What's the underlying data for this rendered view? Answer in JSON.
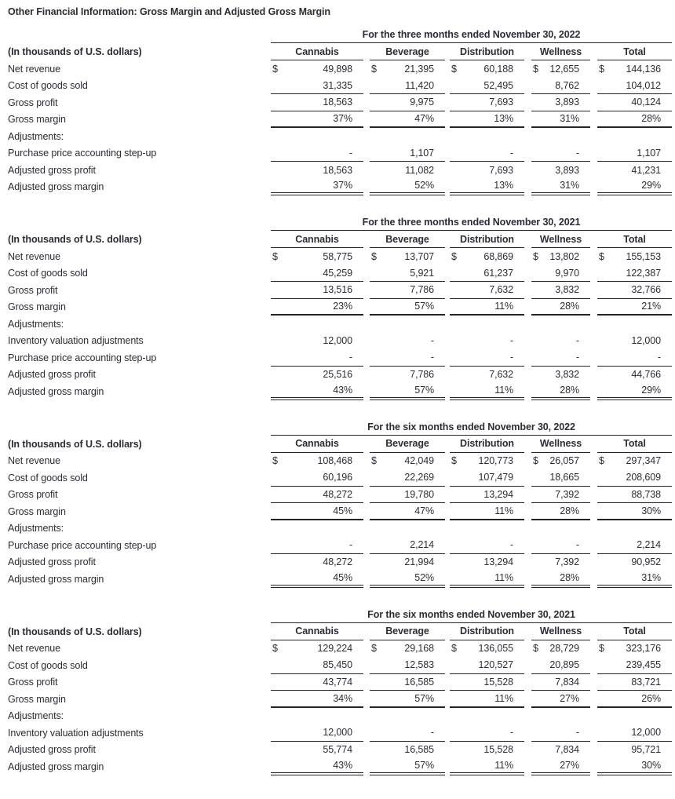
{
  "page_title": "Other Financial Information: Gross Margin and Adjusted Gross Margin",
  "unit_label": "(In thousands of U.S. dollars)",
  "currency_symbol": "$",
  "columns": [
    "Cannabis",
    "Beverage",
    "Distribution",
    "Wellness",
    "Total"
  ],
  "colors": {
    "text": "#2c2c35",
    "rule": "#23232a",
    "background": "#ffffff"
  },
  "tables": [
    {
      "period": "For the three months ended November 30, 2022",
      "rows": [
        {
          "label": "Net revenue",
          "dollar": true,
          "rule": "none",
          "values": [
            "49,898",
            "21,395",
            "60,188",
            "12,655",
            "144,136"
          ]
        },
        {
          "label": "Cost of goods sold",
          "dollar": false,
          "rule": "single",
          "values": [
            "31,335",
            "11,420",
            "52,495",
            "8,762",
            "104,012"
          ]
        },
        {
          "label": "Gross profit",
          "dollar": false,
          "rule": "single",
          "values": [
            "18,563",
            "9,975",
            "7,693",
            "3,893",
            "40,124"
          ]
        },
        {
          "label": "Gross margin",
          "dollar": false,
          "rule": "thick",
          "values": [
            "37%",
            "47%",
            "13%",
            "31%",
            "28%"
          ]
        },
        {
          "label": "Adjustments:",
          "dollar": false,
          "rule": "none",
          "values": [
            "",
            "",
            "",
            "",
            ""
          ]
        },
        {
          "label": "Purchase price accounting step-up",
          "dollar": false,
          "rule": "single",
          "values": [
            "-",
            "1,107",
            "-",
            "-",
            "1,107"
          ]
        },
        {
          "label": "Adjusted gross profit",
          "dollar": false,
          "rule": "none",
          "values": [
            "18,563",
            "11,082",
            "7,693",
            "3,893",
            "41,231"
          ]
        },
        {
          "label": "Adjusted gross margin",
          "dollar": false,
          "rule": "double",
          "values": [
            "37%",
            "52%",
            "13%",
            "31%",
            "29%"
          ]
        }
      ]
    },
    {
      "period": "For the three months ended November 30, 2021",
      "rows": [
        {
          "label": "Net revenue",
          "dollar": true,
          "rule": "none",
          "values": [
            "58,775",
            "13,707",
            "68,869",
            "13,802",
            "155,153"
          ]
        },
        {
          "label": "Cost of goods sold",
          "dollar": false,
          "rule": "single",
          "values": [
            "45,259",
            "5,921",
            "61,237",
            "9,970",
            "122,387"
          ]
        },
        {
          "label": "Gross profit",
          "dollar": false,
          "rule": "single",
          "values": [
            "13,516",
            "7,786",
            "7,632",
            "3,832",
            "32,766"
          ]
        },
        {
          "label": "Gross margin",
          "dollar": false,
          "rule": "thick",
          "values": [
            "23%",
            "57%",
            "11%",
            "28%",
            "21%"
          ]
        },
        {
          "label": "Adjustments:",
          "dollar": false,
          "rule": "none",
          "values": [
            "",
            "",
            "",
            "",
            ""
          ]
        },
        {
          "label": "Inventory valuation adjustments",
          "dollar": false,
          "rule": "none",
          "values": [
            "12,000",
            "-",
            "-",
            "-",
            "12,000"
          ]
        },
        {
          "label": "Purchase price accounting step-up",
          "dollar": false,
          "rule": "single",
          "values": [
            "-",
            "-",
            "-",
            "-",
            "-"
          ]
        },
        {
          "label": "Adjusted gross profit",
          "dollar": false,
          "rule": "none",
          "values": [
            "25,516",
            "7,786",
            "7,632",
            "3,832",
            "44,766"
          ]
        },
        {
          "label": "Adjusted gross margin",
          "dollar": false,
          "rule": "double",
          "values": [
            "43%",
            "57%",
            "11%",
            "28%",
            "29%"
          ]
        }
      ]
    },
    {
      "period": "For the six months ended November 30, 2022",
      "rows": [
        {
          "label": "Net revenue",
          "dollar": true,
          "rule": "none",
          "values": [
            "108,468",
            "42,049",
            "120,773",
            "26,057",
            "297,347"
          ]
        },
        {
          "label": "Cost of goods sold",
          "dollar": false,
          "rule": "single",
          "values": [
            "60,196",
            "22,269",
            "107,479",
            "18,665",
            "208,609"
          ]
        },
        {
          "label": "Gross profit",
          "dollar": false,
          "rule": "single",
          "values": [
            "48,272",
            "19,780",
            "13,294",
            "7,392",
            "88,738"
          ]
        },
        {
          "label": "Gross margin",
          "dollar": false,
          "rule": "thick",
          "values": [
            "45%",
            "47%",
            "11%",
            "28%",
            "30%"
          ]
        },
        {
          "label": "Adjustments:",
          "dollar": false,
          "rule": "none",
          "values": [
            "",
            "",
            "",
            "",
            ""
          ]
        },
        {
          "label": "Purchase price accounting step-up",
          "dollar": false,
          "rule": "single",
          "values": [
            "-",
            "2,214",
            "-",
            "-",
            "2,214"
          ]
        },
        {
          "label": "Adjusted gross profit",
          "dollar": false,
          "rule": "none",
          "values": [
            "48,272",
            "21,994",
            "13,294",
            "7,392",
            "90,952"
          ]
        },
        {
          "label": "Adjusted gross margin",
          "dollar": false,
          "rule": "double",
          "values": [
            "45%",
            "52%",
            "11%",
            "28%",
            "31%"
          ]
        }
      ]
    },
    {
      "period": "For the six months ended November 30, 2021",
      "rows": [
        {
          "label": "Net revenue",
          "dollar": true,
          "rule": "none",
          "values": [
            "129,224",
            "29,168",
            "136,055",
            "28,729",
            "323,176"
          ]
        },
        {
          "label": "Cost of goods sold",
          "dollar": false,
          "rule": "single",
          "values": [
            "85,450",
            "12,583",
            "120,527",
            "20,895",
            "239,455"
          ]
        },
        {
          "label": "Gross profit",
          "dollar": false,
          "rule": "single",
          "values": [
            "43,774",
            "16,585",
            "15,528",
            "7,834",
            "83,721"
          ]
        },
        {
          "label": "Gross margin",
          "dollar": false,
          "rule": "thick",
          "values": [
            "34%",
            "57%",
            "11%",
            "27%",
            "26%"
          ]
        },
        {
          "label": "Adjustments:",
          "dollar": false,
          "rule": "none",
          "values": [
            "",
            "",
            "",
            "",
            ""
          ]
        },
        {
          "label": "Inventory valuation adjustments",
          "dollar": false,
          "rule": "single",
          "values": [
            "12,000",
            "-",
            "-",
            "-",
            "12,000"
          ]
        },
        {
          "label": "Adjusted gross profit",
          "dollar": false,
          "rule": "none",
          "values": [
            "55,774",
            "16,585",
            "15,528",
            "7,834",
            "95,721"
          ]
        },
        {
          "label": "Adjusted gross margin",
          "dollar": false,
          "rule": "double",
          "values": [
            "43%",
            "57%",
            "11%",
            "27%",
            "30%"
          ]
        }
      ]
    }
  ]
}
